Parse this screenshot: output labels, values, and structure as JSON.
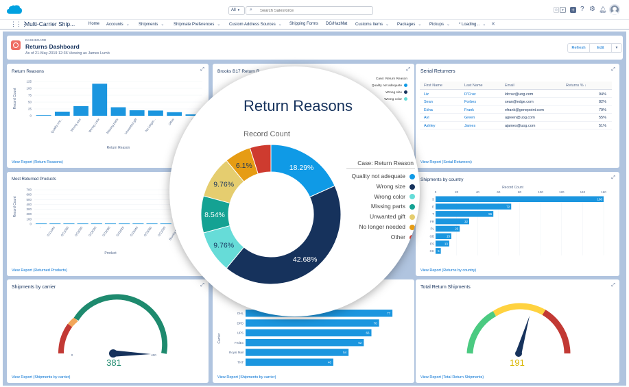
{
  "app": {
    "name": "Multi-Carrier Ship...",
    "search_scope": "All",
    "search_placeholder": "Search Salesforce",
    "nav": [
      {
        "label": "Home",
        "dropdown": false
      },
      {
        "label": "Accounts",
        "dropdown": true
      },
      {
        "label": "Shipments",
        "dropdown": true
      },
      {
        "label": "Shipmate Preferences",
        "dropdown": true
      },
      {
        "label": "Custom Address Sources",
        "dropdown": true
      },
      {
        "label": "Shipping Forms",
        "dropdown": false
      },
      {
        "label": "DG/HazMat",
        "dropdown": false
      },
      {
        "label": "Customs Items",
        "dropdown": true
      },
      {
        "label": "Packages",
        "dropdown": true
      },
      {
        "label": "Pickups",
        "dropdown": true
      },
      {
        "label": "* Loading...",
        "dropdown": true
      }
    ]
  },
  "dashboard": {
    "object_label": "DASHBOARD",
    "title": "Returns Dashboard",
    "subtitle": "As of 21-May-2019 12:36 Viewing as James Lumb",
    "refresh_label": "Refresh",
    "edit_label": "Edit"
  },
  "cards": {
    "return_reasons": {
      "title": "Return Reasons",
      "link": "View Report (Return Reasons)",
      "ylabel": "Record Count",
      "xlabel": "Return Reason"
    },
    "brooks": {
      "title": "Brooks B17 Return R..."
    },
    "serial": {
      "title": "Serial Returners",
      "link": "View Report (Serial Returners)"
    },
    "most_returned": {
      "title": "Most Returned Products",
      "link": "View Report (Returned Products)",
      "ylabel": "Record Count",
      "xlabel": "Product"
    },
    "by_country": {
      "title": "Shipments by country",
      "link": "View Report (Returns by country)",
      "xlabel": "Record Count"
    },
    "by_carrier": {
      "title": "Shipments by carrier",
      "link": "View Report (Shipments by carrier)"
    },
    "carrier_bars": {
      "link": "View Report (Shipments by carrier)",
      "ylabel": "Carrier"
    },
    "total_returns": {
      "title": "Total Return Shipments",
      "link": "View Report (Total Return Shipments)"
    }
  },
  "serial_table": {
    "headers": [
      "First Name",
      "Last Name",
      "Email",
      "Returns %"
    ],
    "rows": [
      {
        "first": "Liz",
        "last": "D'Cruz",
        "email": "ldcruz@uog.com",
        "pct": "94%"
      },
      {
        "first": "Sean",
        "last": "Forbes",
        "email": "sean@edge.com",
        "pct": "82%"
      },
      {
        "first": "Edna",
        "last": "Frank",
        "email": "efrank@genepoint.com",
        "pct": "79%"
      },
      {
        "first": "Avi",
        "last": "Green",
        "email": "agreen@uog.com",
        "pct": "55%"
      },
      {
        "first": "Ashley",
        "last": "James",
        "email": "ajames@uog.com",
        "pct": "51%"
      }
    ]
  },
  "gauges": {
    "carrier_value": "381",
    "carrier_min": "0",
    "carrier_max": "400",
    "total_value": "191"
  },
  "colors": {
    "accent": "#1b96df",
    "dark_navy": "#16325c",
    "canvas": "#b0c4df",
    "gauge_green": "#1e8a6e"
  },
  "magnifier": {
    "title": "Return Reasons",
    "subtitle": "Record Count",
    "legend_title": "Case: Return Reason"
  },
  "chart_data": [
    {
      "type": "pie",
      "title": "Return Reasons",
      "subtitle": "Record Count",
      "legend_title": "Case: Return Reason",
      "legend_position": "right",
      "slices": [
        {
          "label": "Quality not adequate",
          "pct": 18.29,
          "color": "#0f9ae6",
          "show_label": true
        },
        {
          "label": "Wrong size",
          "pct": 42.68,
          "color": "#16325c",
          "show_label": true
        },
        {
          "label": "Wrong color",
          "pct": 9.76,
          "color": "#66dcd8",
          "show_label": true
        },
        {
          "label": "Missing parts",
          "pct": 8.54,
          "color": "#14a293",
          "show_label": true
        },
        {
          "label": "Unwanted gift",
          "pct": 9.76,
          "color": "#e5cd6f",
          "show_label": true
        },
        {
          "label": "No longer needed",
          "pct": 6.1,
          "color": "#e69c14",
          "show_label": true
        },
        {
          "label": "Other",
          "pct": 4.87,
          "color": "#ce3b2f",
          "show_label": false
        }
      ]
    },
    {
      "type": "bar",
      "title": "Return Reasons",
      "ylabel": "Record Count",
      "xlabel": "Return Reason",
      "yticks": [
        "0",
        "25",
        "50",
        "75",
        "100",
        "125"
      ],
      "ylim": [
        0,
        125
      ],
      "categories": [
        "Quality not...",
        "Wrong size",
        "Wrong color",
        "Missing parts",
        "Unwanted gift",
        "No longer...",
        "Other",
        "-"
      ],
      "values": [
        15,
        35,
        117,
        31,
        20,
        19,
        13,
        5
      ],
      "leading_value": 2
    },
    {
      "type": "bar",
      "title": "Most Returned Products",
      "ylabel": "Record Count",
      "xlabel": "Product",
      "yticks": [
        "0",
        "100",
        "200",
        "300",
        "400",
        "500",
        "600",
        "700"
      ],
      "ylim": [
        0,
        700
      ],
      "categories": [
        "-",
        "GC1040",
        "GC1060",
        "GC3020",
        "GC3040",
        "GC3060",
        "GC5020",
        "GC5040",
        "GC5060",
        "GC1020",
        "Brooks B17"
      ],
      "values": [
        10,
        10,
        10,
        10,
        10,
        10,
        10,
        10,
        10,
        10,
        10
      ]
    },
    {
      "type": "bar",
      "orientation": "horizontal",
      "title": "Shipments by country",
      "xlabel": "Record Count",
      "xticks": [
        "0",
        "20",
        "40",
        "60",
        "80",
        "100",
        "120",
        "140",
        "160"
      ],
      "xlim": [
        0,
        160
      ],
      "categories": [
        "US",
        "DE",
        "IT",
        "FR",
        "PL",
        "GB",
        "ES",
        "CH"
      ],
      "category_labels": [
        "S",
        "E",
        "T",
        "FR",
        "PL",
        "GB",
        "ES",
        "CH"
      ],
      "values": [
        160,
        72,
        55,
        32,
        23,
        15,
        13,
        5
      ]
    },
    {
      "type": "bar",
      "orientation": "horizontal",
      "ylabel": "Carrier",
      "categories": [
        "DHL",
        "DPD",
        "UPS",
        "FedEx",
        "Royal Mail",
        "TNT"
      ],
      "category_labels": [
        "DHL",
        "DPD",
        "UPS",
        "FedEx",
        "Royal Mail",
        "TNT"
      ],
      "values": [
        77,
        70,
        66,
        62,
        54,
        46
      ],
      "xmax": 82
    }
  ]
}
